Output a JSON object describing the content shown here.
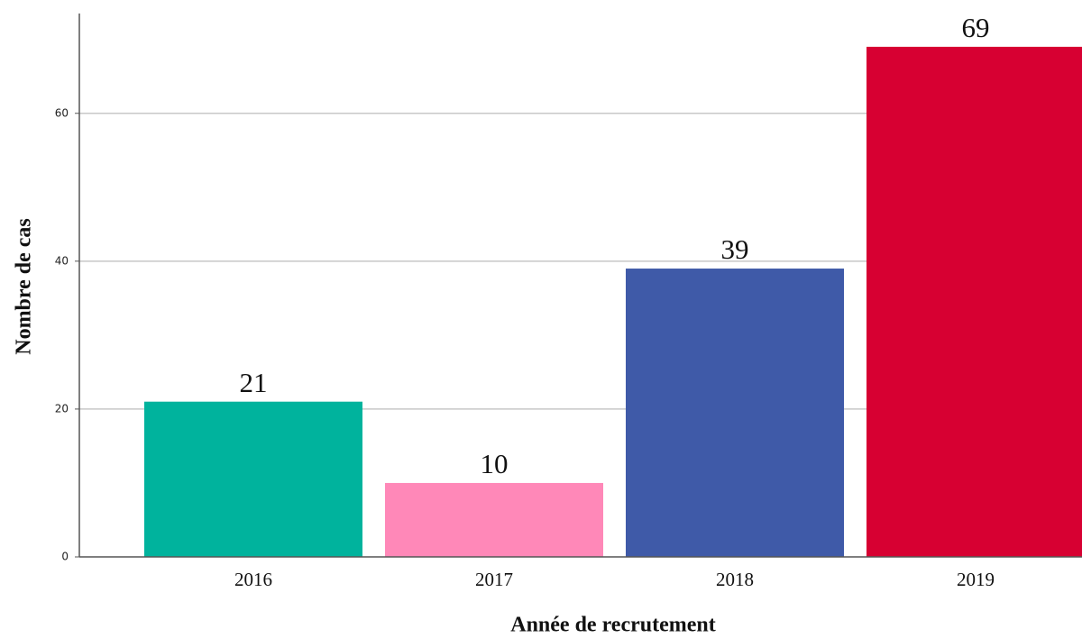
{
  "chart_data": {
    "type": "bar",
    "x_label": "Année de recrutement",
    "y_label": "Nombre de cas",
    "categories": [
      "2016",
      "2017",
      "2018",
      "2019"
    ],
    "values": [
      21,
      10,
      39,
      69
    ],
    "colors": [
      "#00b39d",
      "#ff88b8",
      "#3f5aa8",
      "#d70032"
    ],
    "ylim": [
      0,
      73.5
    ],
    "yticks": [
      0,
      20,
      40,
      60
    ],
    "grid": true
  }
}
